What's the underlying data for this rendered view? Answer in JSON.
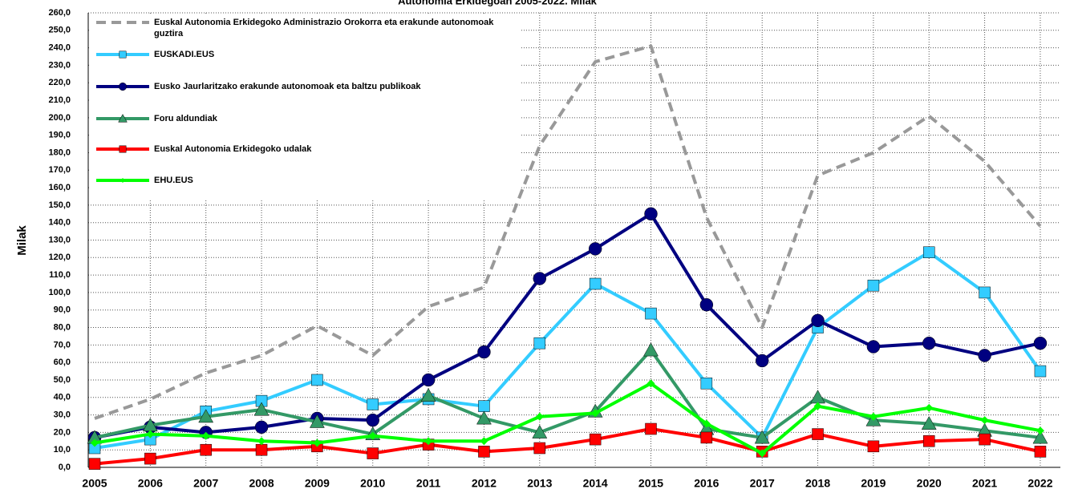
{
  "chart_data": {
    "type": "line",
    "title": "Autonomia Erkidegoan 2005-2022. Milak",
    "y_label": "Milak",
    "categories": [
      "2005",
      "2006",
      "2007",
      "2008",
      "2009",
      "2010",
      "2011",
      "2012",
      "2013",
      "2014",
      "2015",
      "2016",
      "2017",
      "2018",
      "2019",
      "2020",
      "2021",
      "2022"
    ],
    "ylim": [
      0,
      260
    ],
    "yticks": [
      {
        "value": 0,
        "label": "0,0"
      },
      {
        "value": 10,
        "label": "10,0"
      },
      {
        "value": 20,
        "label": "20,0"
      },
      {
        "value": 30,
        "label": "30,0"
      },
      {
        "value": 40,
        "label": "40,0"
      },
      {
        "value": 50,
        "label": "50,0"
      },
      {
        "value": 60,
        "label": "60,0"
      },
      {
        "value": 70,
        "label": "70,0"
      },
      {
        "value": 80,
        "label": "80,0"
      },
      {
        "value": 90,
        "label": "90,0"
      },
      {
        "value": 100,
        "label": "100,0"
      },
      {
        "value": 110,
        "label": "110,0"
      },
      {
        "value": 120,
        "label": "120,0"
      },
      {
        "value": 130,
        "label": "130,0"
      },
      {
        "value": 140,
        "label": "140,0"
      },
      {
        "value": 150,
        "label": "150,0"
      },
      {
        "value": 160,
        "label": "160,0"
      },
      {
        "value": 170,
        "label": "170,0"
      },
      {
        "value": 180,
        "label": "180,0"
      },
      {
        "value": 190,
        "label": "190,0"
      },
      {
        "value": 200,
        "label": "200,0"
      },
      {
        "value": 210,
        "label": "210,0"
      },
      {
        "value": 220,
        "label": "220,0"
      },
      {
        "value": 230,
        "label": "230,0"
      },
      {
        "value": 240,
        "label": "240,0"
      },
      {
        "value": 250,
        "label": "250,0"
      },
      {
        "value": 260,
        "label": "260,0"
      }
    ],
    "grid": true,
    "legend": "upper left",
    "series": [
      {
        "name": "Euskal Autonomia Erkidegoko Administrazio Orokorra eta erakunde autonomoak guztira",
        "color": "#999999",
        "dashed": true,
        "marker": "none",
        "values": [
          28,
          39,
          54,
          64,
          81,
          64,
          92,
          103,
          184,
          232,
          241,
          143,
          80,
          167,
          180,
          201,
          175,
          138
        ]
      },
      {
        "name": "EUSKADI.EUS",
        "color": "#33ccff",
        "marker": "square",
        "values": [
          11,
          16,
          32,
          38,
          50,
          36,
          39,
          35,
          71,
          105,
          88,
          48,
          17,
          80,
          104,
          123,
          100,
          55
        ]
      },
      {
        "name": "Eusko Jaurlaritzako erakunde autonomoak eta baltzu publikoak",
        "color": "#000080",
        "marker": "circle",
        "values": [
          17,
          23,
          20,
          23,
          28,
          27,
          50,
          66,
          108,
          125,
          145,
          93,
          61,
          84,
          69,
          71,
          64,
          71
        ]
      },
      {
        "name": "Foru aldundiak",
        "color": "#339966",
        "marker": "triangle",
        "values": [
          17,
          24,
          29,
          33,
          26,
          19,
          41,
          28,
          20,
          32,
          67,
          22,
          17,
          40,
          27,
          25,
          21,
          17
        ]
      },
      {
        "name": "Euskal Autonomia Erkidegoko udalak",
        "color": "#ff0000",
        "marker": "square",
        "values": [
          2,
          5,
          10,
          10,
          12,
          8,
          13,
          9,
          11,
          16,
          22,
          17,
          9,
          19,
          12,
          15,
          16,
          9
        ]
      },
      {
        "name": "EHU.EUS",
        "color": "#00ff00",
        "marker": "diamond",
        "values": [
          14,
          19,
          18,
          15,
          14,
          18,
          15,
          15,
          29,
          31,
          48,
          25,
          8,
          35,
          29,
          34,
          27,
          21
        ]
      }
    ]
  }
}
